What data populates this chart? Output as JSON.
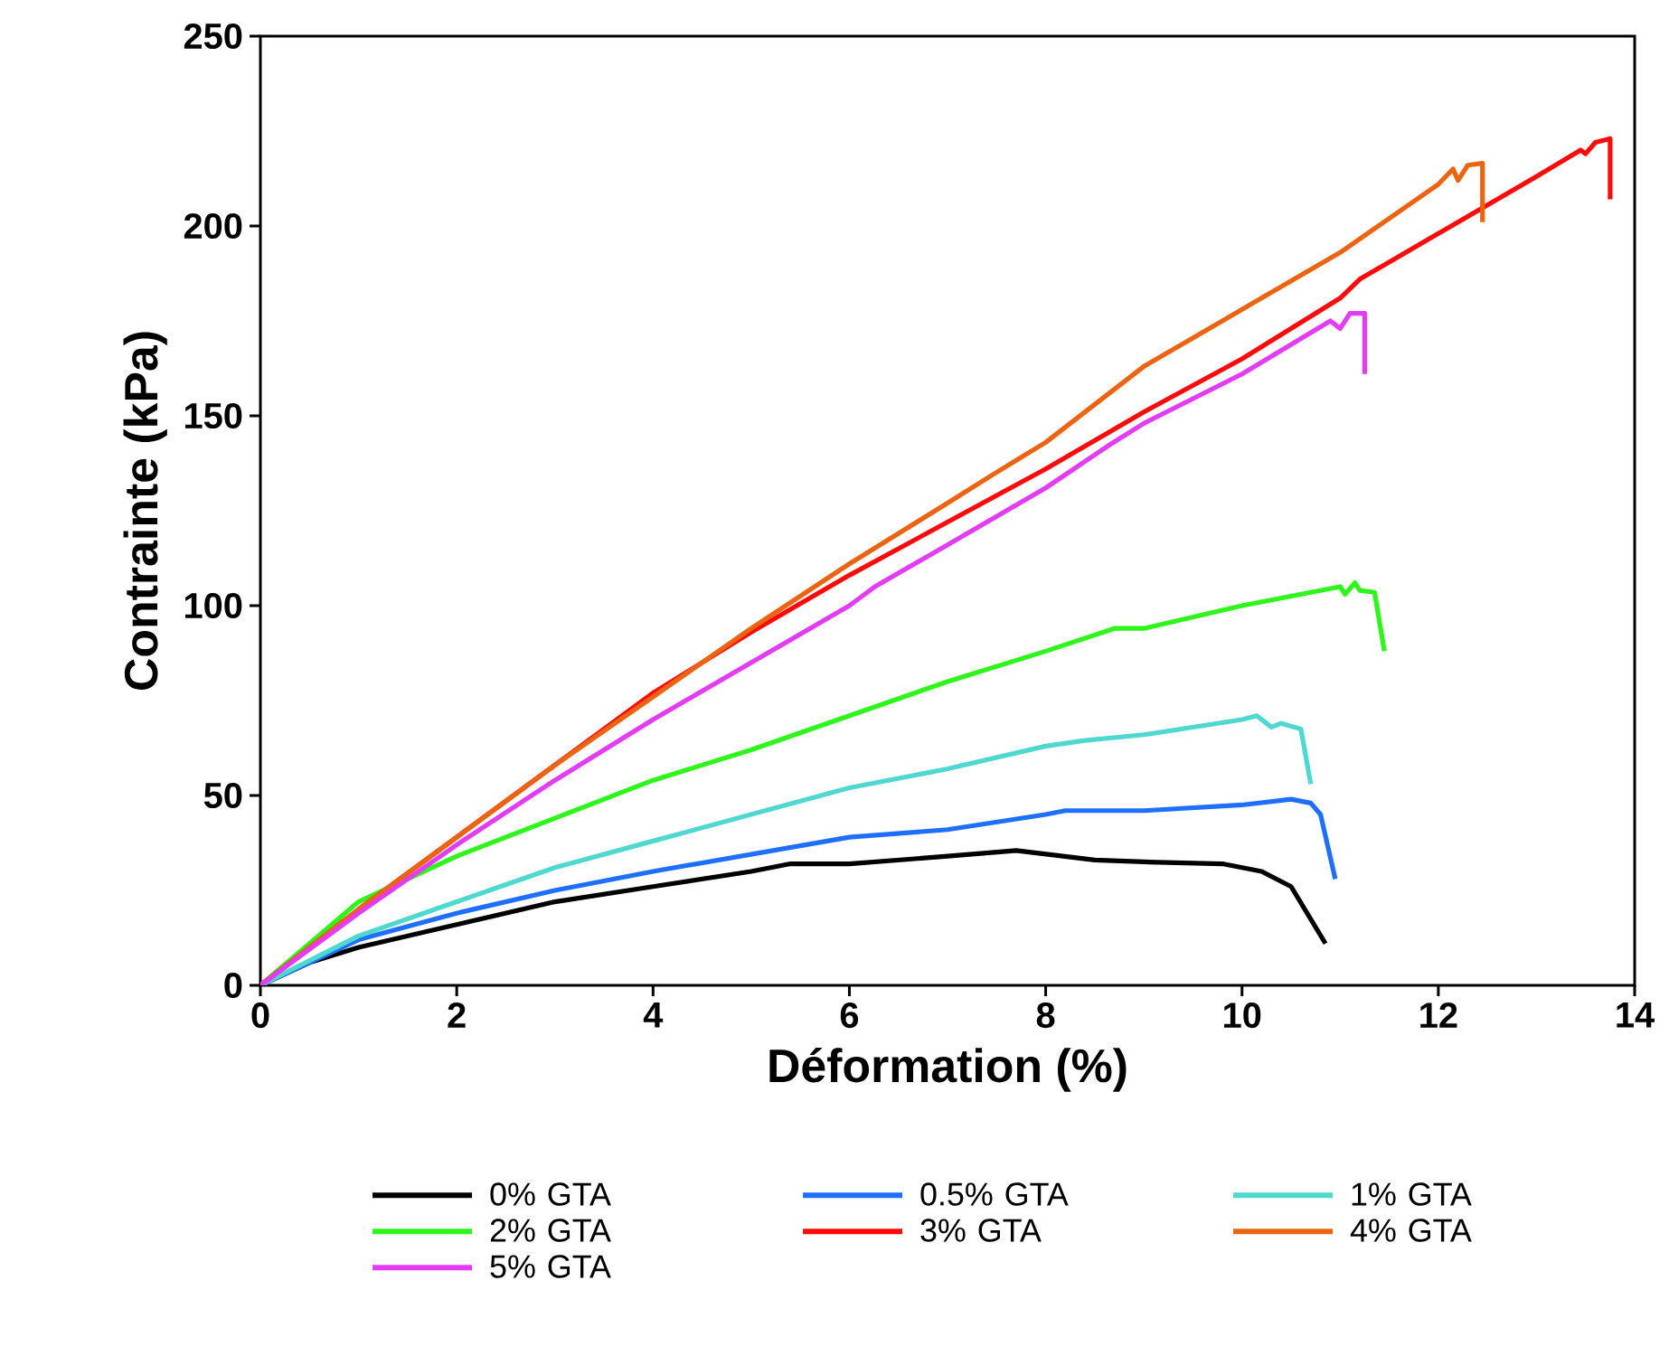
{
  "chart_data": {
    "type": "line",
    "xlabel": "Déformation (%)",
    "ylabel": "Contrainte (kPa)",
    "xlim": [
      0,
      14
    ],
    "ylim": [
      0,
      250
    ],
    "xticks": [
      0,
      2,
      4,
      6,
      8,
      10,
      12,
      14
    ],
    "yticks": [
      0,
      50,
      100,
      150,
      200,
      250
    ],
    "grid": false,
    "legend": "bottom",
    "marker": "none",
    "line_style": "solid",
    "series": [
      {
        "name": "0% GTA",
        "color": "#000000",
        "x": [
          0,
          0.5,
          1,
          2,
          3,
          4,
          5,
          5.4,
          6,
          7,
          7.7,
          8.5,
          9,
          9.8,
          10.2,
          10.5,
          10.85
        ],
        "values": [
          0,
          6,
          10,
          16,
          22,
          26,
          30,
          32,
          32,
          34,
          35.5,
          33,
          32.5,
          32,
          30,
          26,
          11
        ]
      },
      {
        "name": "0.5% GTA",
        "color": "#1f6fff",
        "x": [
          0,
          1,
          2,
          3,
          4,
          5,
          6,
          7,
          8,
          8.2,
          9,
          10,
          10.5,
          10.7,
          10.8,
          10.95
        ],
        "values": [
          0,
          12,
          19,
          25,
          30,
          34.5,
          39,
          41,
          45,
          46,
          46,
          47.5,
          49,
          48,
          45,
          28
        ]
      },
      {
        "name": "1% GTA",
        "color": "#4fd8d0",
        "x": [
          0,
          1,
          2,
          3,
          4,
          5,
          6,
          7,
          8,
          8.4,
          9,
          10,
          10.15,
          10.3,
          10.4,
          10.6,
          10.7
        ],
        "values": [
          0,
          13,
          22,
          31,
          38,
          45,
          52,
          57,
          63,
          64.5,
          66,
          70,
          71,
          68,
          69,
          67.5,
          53
        ]
      },
      {
        "name": "2% GTA",
        "color": "#2ef51a",
        "x": [
          0,
          1,
          2,
          3,
          4,
          5,
          6,
          7,
          8,
          8.7,
          9,
          10,
          11,
          11.05,
          11.15,
          11.2,
          11.35,
          11.45
        ],
        "values": [
          0,
          22,
          34,
          44,
          54,
          62,
          71,
          80,
          88,
          94,
          94,
          100,
          105,
          103,
          106,
          104,
          103.5,
          88
        ]
      },
      {
        "name": "3% GTA",
        "color": "#ff0a0a",
        "x": [
          0,
          1,
          2,
          3,
          4,
          5,
          6,
          7,
          8,
          9,
          10,
          11,
          11.2,
          12,
          13,
          13.45,
          13.5,
          13.6,
          13.75,
          13.75
        ],
        "values": [
          0,
          20,
          39,
          58,
          77,
          93,
          108,
          122,
          136,
          151,
          165,
          181,
          186,
          198,
          213,
          220,
          219,
          222,
          223,
          207
        ]
      },
      {
        "name": "4% GTA",
        "color": "#ec6411",
        "x": [
          0,
          1,
          2,
          3,
          4,
          5,
          6,
          7,
          7.46,
          8,
          9,
          9.8,
          10,
          11,
          12,
          12.15,
          12.2,
          12.3,
          12.45,
          12.45
        ],
        "values": [
          0,
          20,
          39,
          58,
          76,
          94,
          111,
          127,
          134.5,
          143,
          163,
          175,
          178,
          193,
          211,
          215,
          212,
          216,
          216.5,
          201
        ]
      },
      {
        "name": "5% GTA",
        "color": "#e23cf5",
        "x": [
          0,
          1,
          2,
          3,
          4,
          5,
          6,
          6.26,
          7,
          8,
          8.63,
          9,
          10,
          10.9,
          11,
          11.1,
          11.25,
          11.25
        ],
        "values": [
          0,
          19,
          37,
          54,
          70,
          85,
          100,
          105,
          116,
          131,
          142,
          148,
          161,
          175,
          173,
          177,
          177,
          161
        ]
      }
    ]
  }
}
